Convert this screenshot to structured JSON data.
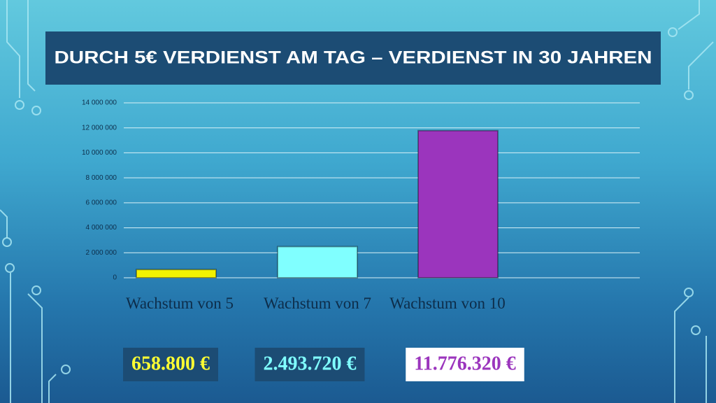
{
  "chart_data": {
    "type": "bar",
    "title": "DURCH 5€ VERDIENST AM TAG – VERDIENST IN 30 JAHREN",
    "categories": [
      "Wachstum von 5",
      "Wachstum von 7",
      "Wachstum von 10"
    ],
    "values": [
      658800,
      2493720,
      11776320
    ],
    "value_labels": [
      "658.800 €",
      "2.493.720 €",
      "11.776.320 €"
    ],
    "colors": [
      "#f2f200",
      "#80ffff",
      "#9b35bd"
    ],
    "ylim": [
      0,
      14000000
    ],
    "yticks": [
      0,
      {
        "value": 2000000,
        "label": "2 000 000"
      },
      {
        "value": 4000000,
        "label": "4 000 000"
      },
      {
        "value": 6000000,
        "label": "6 000 000"
      },
      {
        "value": 8000000,
        "label": "8 000 000"
      },
      {
        "value": 10000000,
        "label": "10 000 000"
      },
      {
        "value": 12000000,
        "label": "12 000 000"
      },
      {
        "value": 14000000,
        "label": "14 000 000"
      }
    ],
    "grid": true
  }
}
